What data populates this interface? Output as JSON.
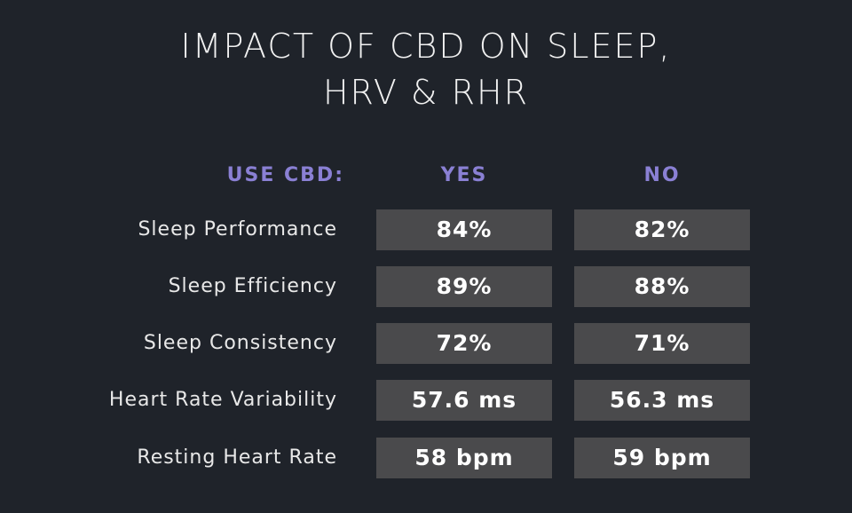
{
  "chart_data": {
    "type": "table",
    "title_lines": [
      "IMPACT OF CBD ON SLEEP,",
      "HRV & RHR"
    ],
    "columns": [
      "USE CBD:",
      "YES",
      "NO"
    ],
    "rows": [
      {
        "label": "Sleep Performance",
        "yes": "84%",
        "no": "82%"
      },
      {
        "label": "Sleep Efficiency",
        "yes": "89%",
        "no": "88%"
      },
      {
        "label": "Sleep Consistency",
        "yes": "72%",
        "no": "71%"
      },
      {
        "label": "Heart Rate Variability",
        "yes": "57.6 ms",
        "no": "56.3 ms"
      },
      {
        "label": "Resting Heart Rate",
        "yes": "58 bpm",
        "no": "59 bpm"
      }
    ]
  },
  "colors": {
    "background": "#1f232a",
    "header": "#8a80d4",
    "cell": "#4a4a4c",
    "text": "#e8e8e8"
  }
}
